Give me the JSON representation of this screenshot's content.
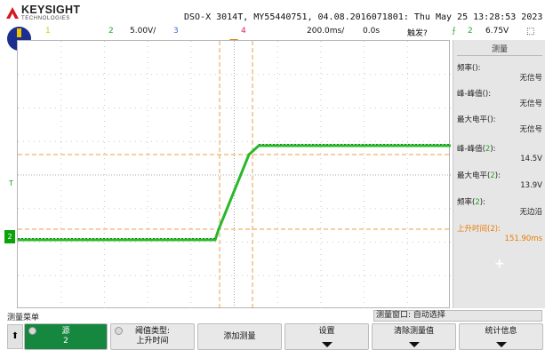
{
  "header": {
    "brand": "KEYSIGHT",
    "brand_sub": "TECHNOLOGIES",
    "system_info": "DSO-X 3014T, MY55440751, 04.08.2016071801: Thu May 25 13:28:53 2023"
  },
  "channel_bar": {
    "ch1": "1",
    "ch2": "2",
    "ch2_scale": "5.00V/",
    "ch3": "3",
    "ch4": "4",
    "timebase": "200.0ms/",
    "delay": "0.0s",
    "trigger_mode": "触发?",
    "trigger_source": "2",
    "trigger_level": "6.75V",
    "colors": {
      "ch1": "#e6d400",
      "ch2": "#22a822",
      "ch3": "#3c6bd6",
      "ch4": "#d9226b",
      "trigger": "#d87a00"
    }
  },
  "waveform": {
    "channel_marker": "2",
    "t_marker": "T"
  },
  "measurements": {
    "title": "测量",
    "items": [
      {
        "label": "频率(",
        "ch": "",
        "tail": "):",
        "value": "无信号",
        "color": "#222222"
      },
      {
        "label": "峰-峰值(",
        "ch": "",
        "tail": "):",
        "value": "无信号",
        "color": "#222222"
      },
      {
        "label": "最大电平(",
        "ch": "",
        "tail": "):",
        "value": "无信号",
        "color": "#222222"
      },
      {
        "label": "峰-峰值(",
        "ch": "2",
        "tail": "):",
        "value": "14.5V",
        "color": "#222222"
      },
      {
        "label": "最大电平(",
        "ch": "2",
        "tail": "):",
        "value": "13.9V",
        "color": "#222222"
      },
      {
        "label": "频率(",
        "ch": "2",
        "tail": "):",
        "value": "无边沿",
        "color": "#222222"
      },
      {
        "label": "上升时间(",
        "ch": "2",
        "tail": "):",
        "value": "151.90ms",
        "color": "#e87c00"
      }
    ],
    "add_symbol": "+"
  },
  "menu": {
    "label": "测量菜单",
    "window_label": "测量窗口: 自动选择",
    "up_symbol": "⬆",
    "softkeys": [
      {
        "line1": "源",
        "line2": "2"
      },
      {
        "line1": "阈值类型:",
        "line2": "上升时间"
      },
      {
        "line1": "添加测量",
        "line2": ""
      },
      {
        "line1": "设置",
        "line2": ""
      },
      {
        "line1": "清除测量值",
        "line2": ""
      },
      {
        "line1": "统计信息",
        "line2": ""
      }
    ]
  }
}
